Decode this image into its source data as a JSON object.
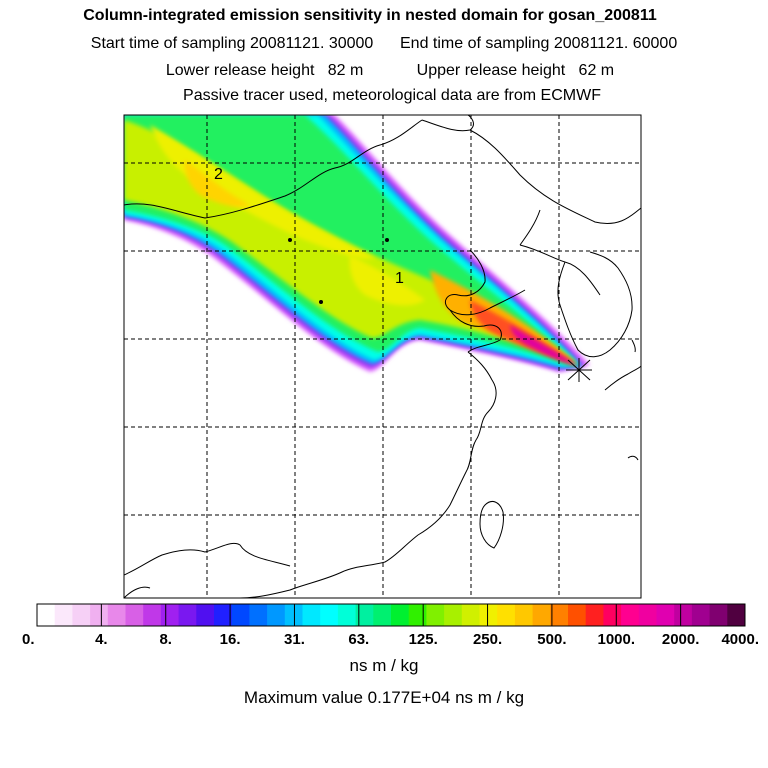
{
  "header": {
    "title": "Column-integrated emission sensitivity in nested domain for gosan_200811",
    "line2": "Start time of sampling 20081121. 30000      End time of sampling 20081121. 60000",
    "line3": "Lower release height   82 m            Upper release height   62 m",
    "line4": "Passive tracer used, meteorological data are from ECMWF"
  },
  "map": {
    "markers": [
      {
        "label": "1"
      },
      {
        "label": "2"
      }
    ],
    "receptor_symbol": "star-burst-icon"
  },
  "colorbar": {
    "tick_labels": [
      "0.",
      "4.",
      "8.",
      "16.",
      "31.",
      "63.",
      "125.",
      "250.",
      "500.",
      "1000.",
      "2000.",
      "4000."
    ],
    "colors": [
      "#ffffff",
      "#fbe8fb",
      "#f6d0f6",
      "#f0b0f0",
      "#e888ea",
      "#d860e6",
      "#c038e8",
      "#a020f0",
      "#7a18f0",
      "#5010f0",
      "#2020ff",
      "#0048ff",
      "#0070ff",
      "#0098ff",
      "#00c0ff",
      "#00e8ff",
      "#00ffff",
      "#00ffd8",
      "#00f0a0",
      "#00f070",
      "#00f030",
      "#30f000",
      "#80f000",
      "#a8f000",
      "#d0f000",
      "#f0f000",
      "#ffe000",
      "#ffc800",
      "#ffa800",
      "#ff8000",
      "#ff5000",
      "#ff2020",
      "#ff0060",
      "#ff0090",
      "#f000a0",
      "#e000b0",
      "#c000a0",
      "#a00090",
      "#800070",
      "#500040"
    ],
    "unit": "ns m / kg",
    "max_value": "Maximum value  0.177E+04 ns m / kg"
  }
}
